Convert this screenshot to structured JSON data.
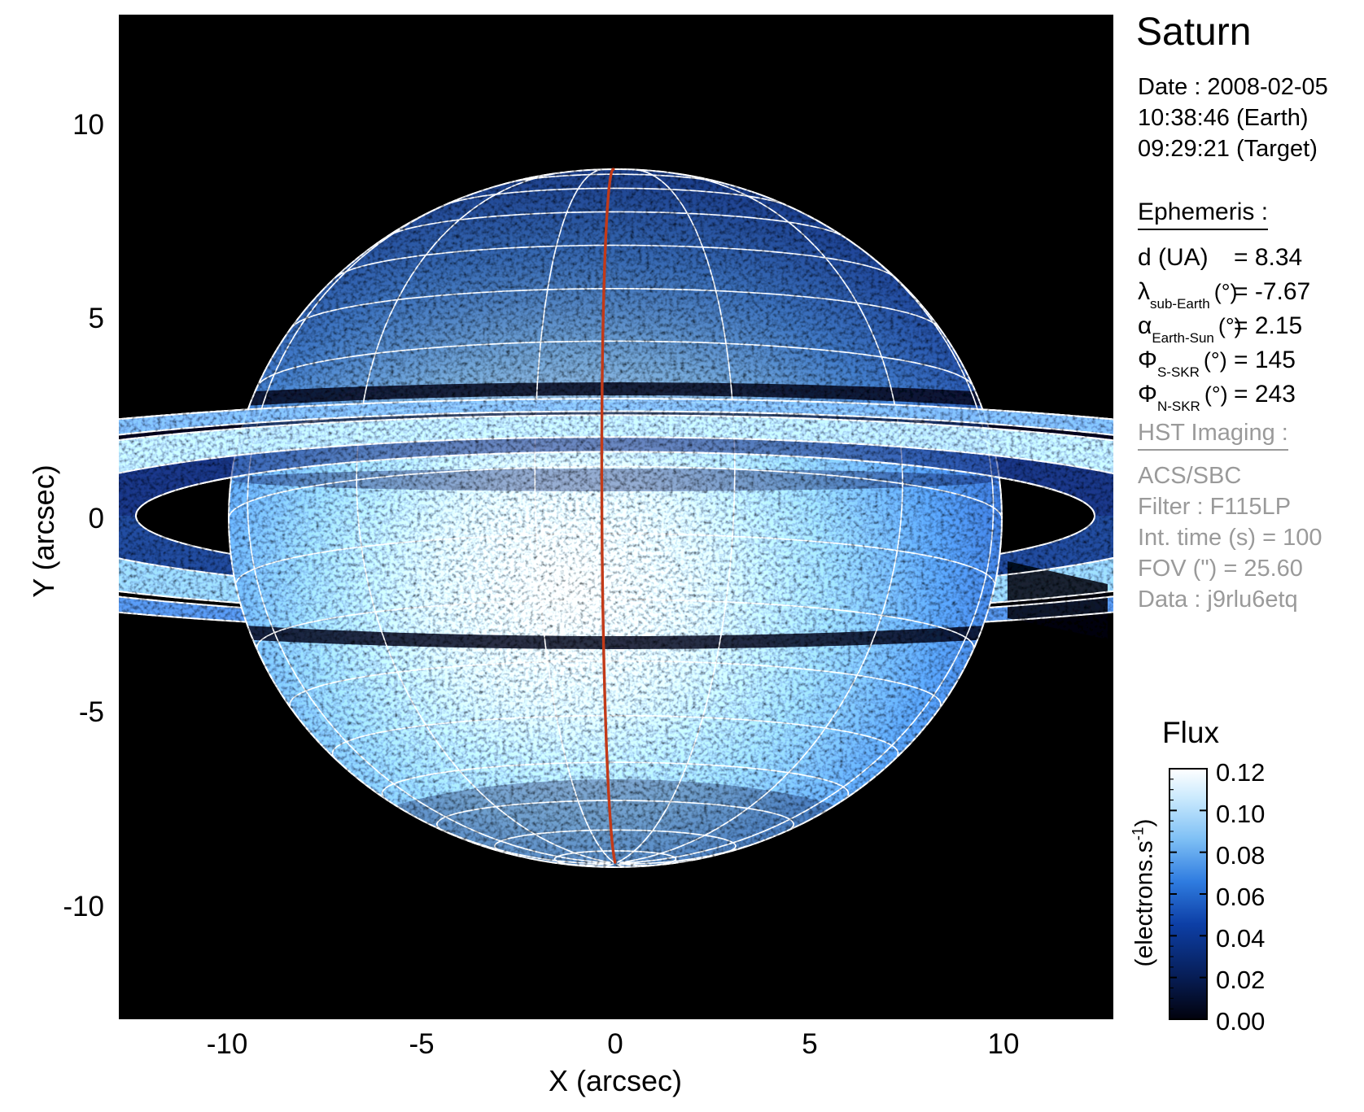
{
  "header": {
    "title": "Saturn",
    "date_lines": [
      "Date : 2008-02-05",
      "10:38:46 (Earth)",
      "09:29:21 (Target)"
    ]
  },
  "ephemeris": {
    "heading": "Ephemeris :",
    "rows": [
      {
        "symbol": "d (UA)",
        "sub": "",
        "unit": "",
        "value": "= 8.34"
      },
      {
        "symbol": "λ",
        "sub": "sub-Earth",
        "unit": "(°)",
        "value": "= -7.67"
      },
      {
        "symbol": "α",
        "sub": "Earth-Sun",
        "unit": "(°)",
        "value": "= 2.15"
      },
      {
        "symbol": "Φ",
        "sub": "S-SKR",
        "unit": "(°)",
        "value": "= 145"
      },
      {
        "symbol": "Φ",
        "sub": "N-SKR",
        "unit": "(°)",
        "value": "= 243"
      }
    ]
  },
  "hst": {
    "heading": "HST Imaging :",
    "lines": [
      "ACS/SBC",
      "Filter : F115LP",
      "Int. time (s) = 100",
      "FOV (\") = 25.60",
      "Data : j9rlu6etq"
    ]
  },
  "axes": {
    "x": {
      "label": "X (arcsec)",
      "ticks": [
        "-10",
        "-5",
        "0",
        "5",
        "10"
      ]
    },
    "y": {
      "label": "Y (arcsec)",
      "ticks": [
        "10",
        "5",
        "0",
        "-5",
        "-10"
      ]
    }
  },
  "colorbar": {
    "title": "Flux",
    "unit_main": "(electrons.s",
    "unit_sup": "-1",
    "unit_close": ")",
    "ticks": [
      "0.12",
      "0.10",
      "0.08",
      "0.06",
      "0.04",
      "0.02",
      "0.00"
    ]
  },
  "colors": {
    "meridian_red": "#c23a18",
    "grid_white": "#ffffff",
    "text_gray": "#9a9a9a",
    "plot_background": "#000000"
  },
  "chart_data": {
    "type": "heatmap",
    "title": "Saturn",
    "subtitle": "HST ACS/SBC far-UV image of Saturn (filter F115LP) with rings, planetary latitude-longitude grid overlay and central meridian marked in red",
    "xlabel": "X (arcsec)",
    "ylabel": "Y (arcsec)",
    "xlim": [
      -12.8,
      12.8
    ],
    "ylim": [
      -12.8,
      12.8
    ],
    "x_ticks": [
      -10,
      -5,
      0,
      5,
      10
    ],
    "y_ticks": [
      10,
      5,
      0,
      -5,
      -10
    ],
    "grid": false,
    "colorbar": {
      "title": "Flux",
      "unit": "electrons.s-1",
      "min": 0.0,
      "max": 0.12,
      "ticks": [
        0.12,
        0.1,
        0.08,
        0.06,
        0.04,
        0.02,
        0.0
      ],
      "colormap": "black-blue-white"
    },
    "annotations": {
      "date": "2008-02-05",
      "time_earth": "10:38:46",
      "time_target": "09:29:21",
      "d_UA": 8.34,
      "lambda_sub_earth_deg": -7.67,
      "alpha_earth_sun_deg": 2.15,
      "phi_S_SKR_deg": 145,
      "phi_N_SKR_deg": 243,
      "instrument": "ACS/SBC",
      "filter": "F115LP",
      "int_time_s": 100,
      "fov_arcsec": 25.6,
      "data_id": "j9rlu6etq"
    }
  }
}
